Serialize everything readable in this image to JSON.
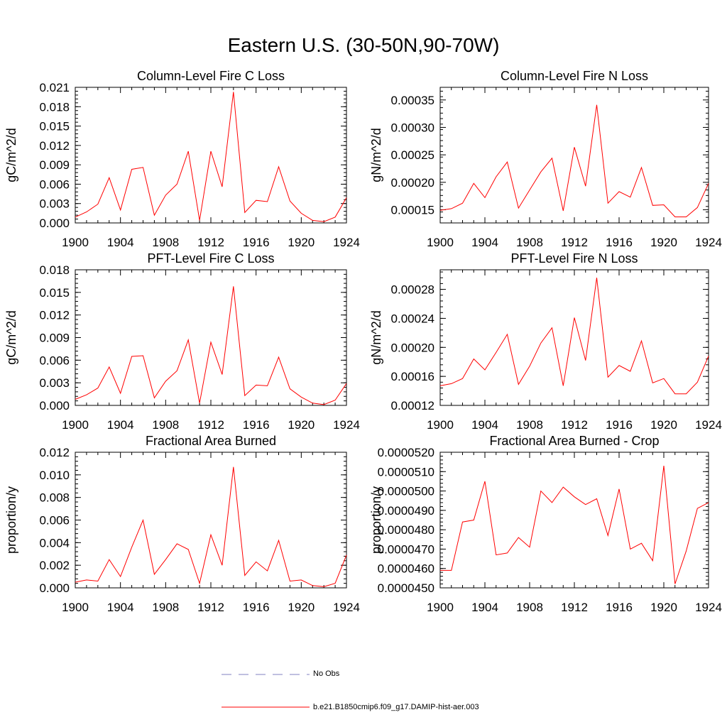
{
  "title": "Eastern U.S. (30-50N,90-70W)",
  "colors": {
    "series": "#ff0000",
    "obs": "#8080c0",
    "axis": "#000000"
  },
  "legend": [
    {
      "label": "No Obs",
      "style": "dashed",
      "color": "#8080c0"
    },
    {
      "label": "b.e21.B1850cmip6.f09_g17.DAMIP-hist-aer.003",
      "style": "solid",
      "color": "#ff0000"
    }
  ],
  "chart_data": [
    {
      "type": "line",
      "title": "Column-Level Fire C Loss",
      "ylabel": "gC/m^2/d",
      "xlim": [
        1900,
        1924
      ],
      "ylim": [
        0,
        0.021
      ],
      "xticks": [
        "1900",
        "1904",
        "1908",
        "1912",
        "1916",
        "1920",
        "1924"
      ],
      "yticks": [
        "0.000",
        "0.003",
        "0.006",
        "0.009",
        "0.012",
        "0.015",
        "0.018",
        "0.021"
      ],
      "x": [
        1900,
        1901,
        1902,
        1903,
        1904,
        1905,
        1906,
        1907,
        1908,
        1909,
        1910,
        1911,
        1912,
        1913,
        1914,
        1915,
        1916,
        1917,
        1918,
        1919,
        1920,
        1921,
        1922,
        1923,
        1924
      ],
      "values": [
        0.0009,
        0.0017,
        0.0029,
        0.007,
        0.002,
        0.0083,
        0.0086,
        0.0012,
        0.0043,
        0.006,
        0.0111,
        0.0004,
        0.0111,
        0.0056,
        0.0203,
        0.0016,
        0.0035,
        0.0033,
        0.0087,
        0.0034,
        0.0015,
        0.0004,
        0.0002,
        0.0009,
        0.0039
      ]
    },
    {
      "type": "line",
      "title": "Column-Level Fire N Loss",
      "ylabel": "gN/m^2/d",
      "xlim": [
        1900,
        1924
      ],
      "ylim": [
        0.000126,
        0.000373
      ],
      "xticks": [
        "1900",
        "1904",
        "1908",
        "1912",
        "1916",
        "1920",
        "1924"
      ],
      "yticks": [
        "0.00015",
        "0.00020",
        "0.00025",
        "0.00030",
        "0.00035"
      ],
      "x": [
        1900,
        1901,
        1902,
        1903,
        1904,
        1905,
        1906,
        1907,
        1908,
        1909,
        1910,
        1911,
        1912,
        1913,
        1914,
        1915,
        1916,
        1917,
        1918,
        1919,
        1920,
        1921,
        1922,
        1923,
        1924
      ],
      "values": [
        0.000149,
        0.000152,
        0.000162,
        0.000198,
        0.000172,
        0.00021,
        0.000237,
        0.000153,
        0.000186,
        0.000219,
        0.000244,
        0.000148,
        0.000264,
        0.000193,
        0.000341,
        0.000162,
        0.000183,
        0.000173,
        0.000227,
        0.000158,
        0.000159,
        0.000137,
        0.000137,
        0.000154,
        0.000198
      ]
    },
    {
      "type": "line",
      "title": "PFT-Level Fire C Loss",
      "ylabel": "gC/m^2/d",
      "xlim": [
        1900,
        1924
      ],
      "ylim": [
        0,
        0.018
      ],
      "xticks": [
        "1900",
        "1904",
        "1908",
        "1912",
        "1916",
        "1920",
        "1924"
      ],
      "yticks": [
        "0.000",
        "0.003",
        "0.006",
        "0.009",
        "0.012",
        "0.015",
        "0.018"
      ],
      "x": [
        1900,
        1901,
        1902,
        1903,
        1904,
        1905,
        1906,
        1907,
        1908,
        1909,
        1910,
        1911,
        1912,
        1913,
        1914,
        1915,
        1916,
        1917,
        1918,
        1919,
        1920,
        1921,
        1922,
        1923,
        1924
      ],
      "values": [
        0.0008,
        0.0014,
        0.0023,
        0.0051,
        0.0016,
        0.0065,
        0.0066,
        0.001,
        0.0032,
        0.0046,
        0.0087,
        0.0003,
        0.0084,
        0.0041,
        0.0158,
        0.0013,
        0.0027,
        0.0026,
        0.0064,
        0.0022,
        0.0011,
        0.0003,
        0.0001,
        0.0007,
        0.0029
      ]
    },
    {
      "type": "line",
      "title": "PFT-Level Fire N Loss",
      "ylabel": "gN/m^2/d",
      "xlim": [
        1900,
        1924
      ],
      "ylim": [
        0.00012,
        0.000307
      ],
      "xticks": [
        "1900",
        "1904",
        "1908",
        "1912",
        "1916",
        "1920",
        "1924"
      ],
      "yticks": [
        "0.00012",
        "0.00016",
        "0.00020",
        "0.00024",
        "0.00028"
      ],
      "x": [
        1900,
        1901,
        1902,
        1903,
        1904,
        1905,
        1906,
        1907,
        1908,
        1909,
        1910,
        1911,
        1912,
        1913,
        1914,
        1915,
        1916,
        1917,
        1918,
        1919,
        1920,
        1921,
        1922,
        1923,
        1924
      ],
      "values": [
        0.000147,
        0.00015,
        0.000157,
        0.000184,
        0.000169,
        0.000193,
        0.000218,
        0.000149,
        0.000174,
        0.000206,
        0.000227,
        0.000147,
        0.000241,
        0.000182,
        0.000296,
        0.000159,
        0.000175,
        0.000167,
        0.000209,
        0.000151,
        0.000157,
        0.000136,
        0.000136,
        0.000152,
        0.000188
      ]
    },
    {
      "type": "line",
      "title": "Fractional Area Burned",
      "ylabel": "proportion/y",
      "xlim": [
        1900,
        1924
      ],
      "ylim": [
        0,
        0.012
      ],
      "xticks": [
        "1900",
        "1904",
        "1908",
        "1912",
        "1916",
        "1920",
        "1924"
      ],
      "yticks": [
        "0.000",
        "0.002",
        "0.004",
        "0.006",
        "0.008",
        "0.010",
        "0.012"
      ],
      "x": [
        1900,
        1901,
        1902,
        1903,
        1904,
        1905,
        1906,
        1907,
        1908,
        1909,
        1910,
        1911,
        1912,
        1913,
        1914,
        1915,
        1916,
        1917,
        1918,
        1919,
        1920,
        1921,
        1922,
        1923,
        1924
      ],
      "values": [
        0.0005,
        0.0007,
        0.0006,
        0.0025,
        0.001,
        0.0036,
        0.006,
        0.0012,
        0.0025,
        0.0039,
        0.0034,
        0.0004,
        0.0047,
        0.002,
        0.0107,
        0.0011,
        0.0023,
        0.0015,
        0.0042,
        0.0006,
        0.0007,
        0.0002,
        0.0001,
        0.0004,
        0.0029
      ]
    },
    {
      "type": "line",
      "title": "Fractional Area Burned - Crop",
      "ylabel": "proportion/y",
      "xlim": [
        1900,
        1924
      ],
      "ylim": [
        4.5e-05,
        5.2e-05
      ],
      "xticks": [
        "1900",
        "1904",
        "1908",
        "1912",
        "1916",
        "1920",
        "1924"
      ],
      "yticks": [
        "0.0000450",
        "0.0000460",
        "0.0000470",
        "0.0000480",
        "0.0000490",
        "0.0000500",
        "0.0000510",
        "0.0000520"
      ],
      "x": [
        1900,
        1901,
        1902,
        1903,
        1904,
        1905,
        1906,
        1907,
        1908,
        1909,
        1910,
        1911,
        1912,
        1913,
        1914,
        1915,
        1916,
        1917,
        1918,
        1919,
        1920,
        1921,
        1922,
        1923,
        1924
      ],
      "values": [
        4.59e-05,
        4.59e-05,
        4.84e-05,
        4.85e-05,
        5.05e-05,
        4.67e-05,
        4.68e-05,
        4.76e-05,
        4.71e-05,
        5e-05,
        4.94e-05,
        5.02e-05,
        4.97e-05,
        4.93e-05,
        4.96e-05,
        4.77e-05,
        5.01e-05,
        4.7e-05,
        4.73e-05,
        4.64e-05,
        5.13e-05,
        4.52e-05,
        4.69e-05,
        4.91e-05,
        4.94e-05
      ]
    }
  ]
}
